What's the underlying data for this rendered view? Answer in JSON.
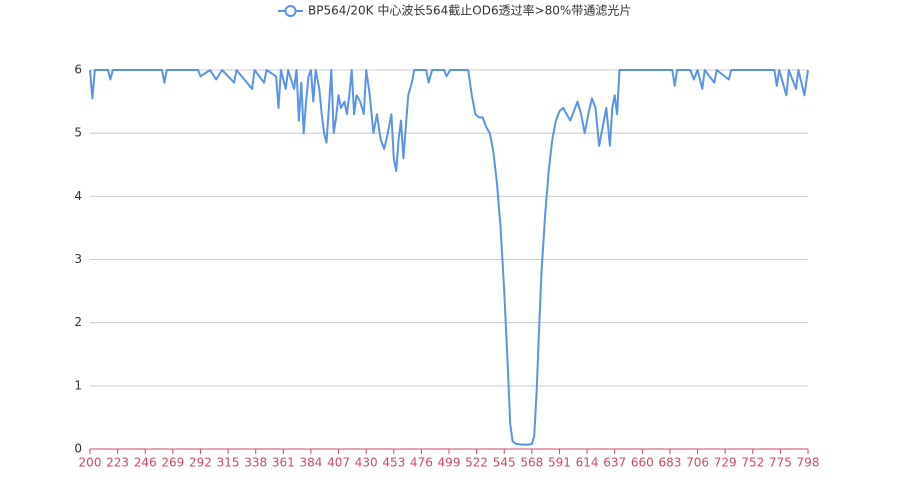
{
  "chart_data": {
    "type": "line",
    "series": [
      {
        "name": "BP564/20K 中心波长564截止OD6透过率>80%带通滤光片",
        "color": "#5b93e8",
        "x": [
          200,
          202,
          204,
          215,
          217,
          219,
          260,
          262,
          264,
          290,
          292,
          300,
          305,
          310,
          320,
          322,
          335,
          337,
          345,
          347,
          355,
          357,
          359,
          363,
          365,
          370,
          372,
          374,
          376,
          378,
          380,
          382,
          384,
          386,
          388,
          391,
          393,
          395,
          397,
          399,
          401,
          403,
          405,
          407,
          409,
          412,
          414,
          416,
          418,
          420,
          422,
          425,
          428,
          430,
          433,
          436,
          439,
          442,
          445,
          448,
          451,
          453,
          455,
          457,
          459,
          461,
          463,
          465,
          468,
          470,
          480,
          482,
          485,
          495,
          497,
          500,
          515,
          518,
          521,
          524,
          527,
          530,
          533,
          536,
          539,
          542,
          545,
          548,
          550,
          552,
          555,
          560,
          565,
          568,
          570,
          572,
          574,
          576,
          579,
          582,
          585,
          588,
          591,
          594,
          597,
          600,
          603,
          606,
          609,
          612,
          615,
          618,
          621,
          624,
          627,
          630,
          633,
          635,
          637,
          639,
          641,
          660,
          685,
          687,
          689,
          700,
          703,
          706,
          710,
          712,
          720,
          722,
          732,
          734,
          770,
          772,
          774,
          780,
          782,
          788,
          790,
          795,
          798
        ],
        "values": [
          6,
          5.55,
          6,
          6,
          5.85,
          6,
          6,
          5.8,
          6,
          6,
          5.9,
          6,
          5.85,
          6,
          5.8,
          6,
          5.7,
          6,
          5.8,
          6,
          5.9,
          5.4,
          6,
          5.7,
          6,
          5.7,
          6,
          5.2,
          5.8,
          5.0,
          5.5,
          5.9,
          6,
          5.5,
          6,
          5.7,
          5.3,
          5.0,
          4.85,
          5.4,
          6,
          5.0,
          5.25,
          5.6,
          5.4,
          5.5,
          5.3,
          5.6,
          6,
          5.3,
          5.6,
          5.5,
          5.3,
          6,
          5.6,
          5.0,
          5.3,
          4.9,
          4.75,
          5.0,
          5.3,
          4.6,
          4.4,
          4.9,
          5.2,
          4.6,
          5.1,
          5.6,
          5.8,
          6,
          6,
          5.8,
          6,
          6,
          5.9,
          6,
          6,
          5.6,
          5.3,
          5.25,
          5.25,
          5.1,
          5.0,
          4.7,
          4.2,
          3.5,
          2.5,
          1.3,
          0.4,
          0.12,
          0.08,
          0.07,
          0.07,
          0.08,
          0.2,
          0.9,
          1.9,
          2.8,
          3.7,
          4.4,
          4.9,
          5.2,
          5.35,
          5.4,
          5.3,
          5.2,
          5.35,
          5.5,
          5.3,
          5.0,
          5.3,
          5.55,
          5.4,
          4.8,
          5.1,
          5.4,
          4.8,
          5.4,
          5.6,
          5.3,
          6,
          6,
          6,
          5.75,
          6,
          6,
          5.85,
          6,
          5.7,
          6,
          5.8,
          6,
          5.85,
          6,
          6,
          5.75,
          6,
          5.6,
          6,
          5.7,
          6,
          5.6,
          6
        ]
      }
    ],
    "xlim": [
      200,
      798
    ],
    "xticks": [
      200,
      223,
      246,
      269,
      292,
      315,
      338,
      361,
      384,
      407,
      430,
      453,
      476,
      499,
      522,
      545,
      568,
      591,
      614,
      637,
      660,
      683,
      706,
      729,
      752,
      775,
      798
    ],
    "ylim": [
      0,
      6
    ],
    "yticks": [
      0,
      1,
      2,
      3,
      4,
      5,
      6
    ],
    "grid": true
  }
}
